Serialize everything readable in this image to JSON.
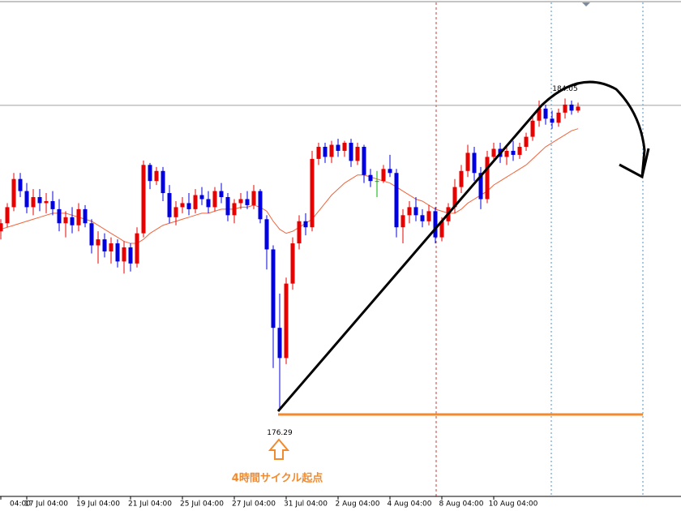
{
  "chart_data": {
    "type": "candlestick",
    "ylim": [
      174.2,
      186.5
    ],
    "up_color": "#e80000",
    "down_color": "#0000e0",
    "doji_color": "#00b000",
    "hline": 183.88,
    "categories": [
      "04:00",
      null,
      null,
      null,
      "17 Jul 04:00",
      null,
      null,
      null,
      null,
      null,
      null,
      null,
      "19 Jul 04:00",
      null,
      null,
      null,
      null,
      null,
      null,
      null,
      "21 Jul 04:00",
      null,
      null,
      null,
      null,
      null,
      null,
      null,
      "25 Jul 04:00",
      null,
      null,
      null,
      null,
      null,
      null,
      null,
      "27 Jul 04:00",
      null,
      null,
      null,
      null,
      null,
      null,
      null,
      "31 Jul 04:00",
      null,
      null,
      null,
      null,
      null,
      null,
      null,
      "2 Aug 04:00",
      null,
      null,
      null,
      null,
      null,
      null,
      null,
      "4 Aug 04:00",
      null,
      null,
      null,
      null,
      null,
      null,
      null,
      "8 Aug 04:00",
      null,
      null,
      null,
      null,
      null,
      null,
      null,
      "10 Aug 04:00",
      null,
      null,
      null,
      null,
      null,
      null,
      null,
      null,
      null,
      null,
      null,
      null,
      null
    ],
    "candles": [
      [
        180.75,
        181.05,
        180.55,
        180.95
      ],
      [
        180.95,
        181.45,
        180.85,
        181.35
      ],
      [
        181.35,
        182.2,
        181.25,
        182.05
      ],
      [
        182.05,
        182.2,
        181.6,
        181.75
      ],
      [
        181.75,
        181.95,
        181.2,
        181.35
      ],
      [
        181.35,
        181.8,
        181.15,
        181.6
      ],
      [
        181.6,
        181.8,
        181.25,
        181.45
      ],
      [
        181.45,
        181.7,
        181.2,
        181.5
      ],
      [
        181.5,
        181.75,
        181.15,
        181.3
      ],
      [
        181.3,
        181.55,
        180.75,
        180.95
      ],
      [
        180.95,
        181.25,
        180.6,
        181.1
      ],
      [
        181.1,
        181.35,
        180.7,
        180.9
      ],
      [
        180.9,
        181.45,
        180.75,
        181.3
      ],
      [
        181.3,
        181.4,
        180.85,
        180.95
      ],
      [
        180.95,
        181.05,
        180.2,
        180.4
      ],
      [
        180.4,
        180.75,
        179.95,
        180.55
      ],
      [
        180.55,
        180.7,
        180.1,
        180.25
      ],
      [
        180.25,
        180.6,
        179.95,
        180.45
      ],
      [
        180.45,
        180.55,
        179.85,
        180.0
      ],
      [
        180.0,
        180.5,
        179.7,
        180.35
      ],
      [
        180.35,
        180.45,
        179.75,
        179.95
      ],
      [
        179.95,
        180.85,
        179.85,
        180.7
      ],
      [
        180.7,
        182.51,
        180.6,
        182.4
      ],
      [
        182.4,
        182.45,
        181.8,
        182.0
      ],
      [
        182.0,
        182.35,
        181.9,
        182.25
      ],
      [
        182.25,
        182.35,
        181.5,
        181.7
      ],
      [
        181.7,
        181.9,
        180.95,
        181.1
      ],
      [
        181.1,
        181.5,
        180.9,
        181.35
      ],
      [
        181.35,
        181.6,
        181.2,
        181.45
      ],
      [
        181.45,
        181.7,
        181.15,
        181.3
      ],
      [
        181.3,
        181.8,
        181.2,
        181.65
      ],
      [
        181.65,
        181.85,
        181.4,
        181.55
      ],
      [
        181.55,
        181.75,
        181.2,
        181.35
      ],
      [
        181.35,
        181.85,
        181.25,
        181.75
      ],
      [
        181.75,
        181.95,
        181.45,
        181.6
      ],
      [
        181.6,
        181.7,
        181.0,
        181.15
      ],
      [
        181.15,
        181.55,
        180.95,
        181.45
      ],
      [
        181.45,
        181.7,
        181.3,
        181.55
      ],
      [
        181.55,
        181.75,
        181.3,
        181.4
      ],
      [
        181.4,
        181.9,
        181.3,
        181.75
      ],
      [
        181.75,
        181.8,
        180.95,
        181.05
      ],
      [
        181.05,
        181.15,
        179.8,
        180.3
      ],
      [
        180.3,
        180.4,
        177.35,
        178.35
      ],
      [
        178.35,
        179.2,
        176.29,
        177.6
      ],
      [
        177.6,
        179.6,
        177.45,
        179.45
      ],
      [
        179.45,
        180.6,
        179.3,
        180.45
      ],
      [
        180.45,
        181.15,
        180.3,
        181.0
      ],
      [
        181.0,
        181.2,
        180.65,
        180.85
      ],
      [
        180.85,
        182.75,
        180.75,
        182.55
      ],
      [
        182.55,
        182.95,
        182.4,
        182.85
      ],
      [
        182.85,
        182.95,
        182.45,
        182.6
      ],
      [
        182.6,
        183.0,
        182.45,
        182.9
      ],
      [
        182.9,
        183.05,
        182.6,
        182.75
      ],
      [
        182.75,
        183.0,
        182.6,
        182.95
      ],
      [
        182.95,
        183.05,
        182.35,
        182.5
      ],
      [
        182.5,
        182.95,
        182.4,
        182.85
      ],
      [
        182.85,
        182.9,
        181.95,
        182.15
      ],
      [
        182.15,
        182.3,
        181.85,
        182.0
      ],
      [
        182.0,
        182.25,
        181.6,
        182.0
      ],
      [
        182.0,
        182.4,
        181.95,
        182.3
      ],
      [
        182.3,
        182.65,
        182.1,
        182.2
      ],
      [
        182.2,
        182.3,
        180.6,
        180.85
      ],
      [
        180.85,
        181.3,
        180.45,
        181.15
      ],
      [
        181.15,
        181.5,
        180.95,
        181.35
      ],
      [
        181.35,
        181.6,
        181.0,
        181.15
      ],
      [
        181.15,
        181.3,
        180.85,
        181.0
      ],
      [
        181.0,
        181.4,
        180.9,
        181.25
      ],
      [
        181.25,
        181.35,
        180.45,
        180.6
      ],
      [
        180.6,
        181.1,
        180.5,
        181.0
      ],
      [
        181.0,
        181.45,
        180.9,
        181.35
      ],
      [
        181.35,
        182.05,
        181.2,
        181.85
      ],
      [
        181.85,
        182.4,
        181.7,
        182.25
      ],
      [
        182.25,
        182.9,
        182.1,
        182.7
      ],
      [
        182.7,
        182.85,
        182.0,
        182.2
      ],
      [
        182.2,
        182.35,
        181.3,
        181.55
      ],
      [
        181.55,
        182.75,
        181.45,
        182.6
      ],
      [
        182.6,
        182.95,
        182.5,
        182.8
      ],
      [
        182.8,
        182.95,
        182.45,
        182.6
      ],
      [
        182.6,
        182.9,
        182.4,
        182.75
      ],
      [
        182.75,
        183.0,
        182.5,
        182.65
      ],
      [
        182.65,
        182.95,
        182.55,
        182.85
      ],
      [
        182.85,
        183.2,
        182.75,
        183.1
      ],
      [
        183.1,
        183.65,
        183.0,
        183.5
      ],
      [
        183.5,
        184.0,
        183.35,
        183.8
      ],
      [
        183.8,
        183.9,
        183.4,
        183.55
      ],
      [
        183.55,
        183.75,
        183.3,
        183.45
      ],
      [
        183.45,
        183.8,
        183.35,
        183.7
      ],
      [
        183.7,
        184.05,
        183.55,
        183.9
      ],
      [
        183.9,
        184.0,
        183.65,
        183.75
      ],
      [
        183.75,
        183.95,
        183.7,
        183.85
      ]
    ],
    "ma": {
      "color": "#f0643c",
      "values": [
        180.8,
        180.85,
        180.9,
        180.95,
        181.0,
        181.05,
        181.1,
        181.15,
        181.2,
        181.2,
        181.2,
        181.15,
        181.1,
        181.05,
        181.0,
        180.9,
        180.8,
        180.7,
        180.6,
        180.5,
        180.45,
        180.45,
        180.55,
        180.7,
        180.8,
        180.9,
        180.95,
        181.0,
        181.05,
        181.1,
        181.15,
        181.2,
        181.2,
        181.25,
        181.3,
        181.3,
        181.3,
        181.35,
        181.35,
        181.4,
        181.35,
        181.25,
        181.0,
        180.8,
        180.7,
        180.75,
        180.85,
        180.95,
        181.05,
        181.25,
        181.45,
        181.65,
        181.8,
        181.95,
        182.05,
        182.15,
        182.15,
        182.1,
        182.05,
        182.0,
        181.95,
        181.85,
        181.75,
        181.65,
        181.55,
        181.5,
        181.4,
        181.3,
        181.25,
        181.2,
        181.2,
        181.3,
        181.45,
        181.55,
        181.65,
        181.75,
        181.9,
        182.0,
        182.1,
        182.2,
        182.3,
        182.4,
        182.55,
        182.7,
        182.85,
        182.95,
        183.05,
        183.15,
        183.25,
        183.3
      ]
    },
    "annotations": [
      "4時間サイクル起点"
    ]
  }
}
